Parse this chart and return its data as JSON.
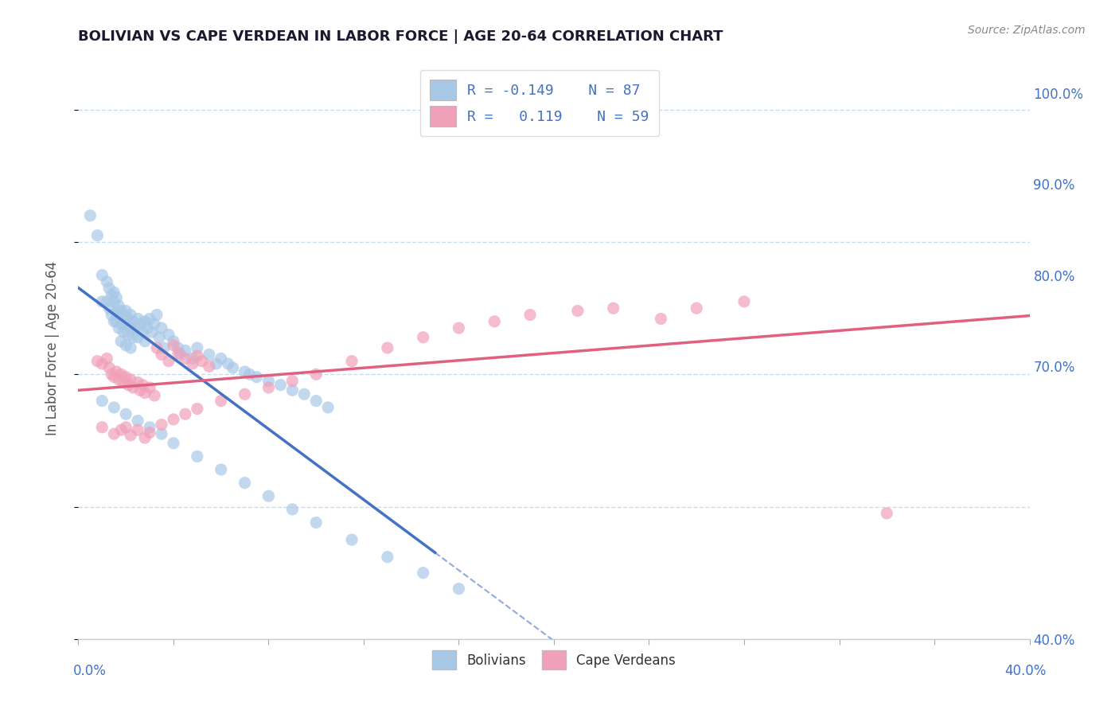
{
  "title": "BOLIVIAN VS CAPE VERDEAN IN LABOR FORCE | AGE 20-64 CORRELATION CHART",
  "source": "Source: ZipAtlas.com",
  "ylabel": "In Labor Force | Age 20-64",
  "yticks_right": [
    "100.0%",
    "90.0%",
    "80.0%",
    "70.0%",
    "40.0%"
  ],
  "ytick_values_right": [
    1.0,
    0.9,
    0.8,
    0.7,
    0.4
  ],
  "xmin": 0.0,
  "xmax": 0.4,
  "ymin": 0.6,
  "ymax": 1.04,
  "bolivian_R": -0.149,
  "bolivian_N": 87,
  "capeverdean_R": 0.119,
  "capeverdean_N": 59,
  "bolivian_color": "#a8c8e8",
  "capeverdean_color": "#f0a0b8",
  "bolivian_line_color": "#4472c4",
  "capeverdean_line_color": "#e06080",
  "background_color": "#ffffff",
  "grid_color": "#c8ddf0",
  "title_color": "#1a1a2e",
  "axis_label_color": "#4472c4",
  "legend_R_color": "#4472c4",
  "bolivian_scatter_x": [
    0.005,
    0.008,
    0.01,
    0.01,
    0.012,
    0.012,
    0.013,
    0.013,
    0.014,
    0.014,
    0.015,
    0.015,
    0.015,
    0.016,
    0.016,
    0.016,
    0.017,
    0.017,
    0.017,
    0.018,
    0.018,
    0.018,
    0.019,
    0.019,
    0.02,
    0.02,
    0.02,
    0.021,
    0.021,
    0.022,
    0.022,
    0.022,
    0.023,
    0.023,
    0.024,
    0.025,
    0.025,
    0.026,
    0.027,
    0.028,
    0.028,
    0.029,
    0.03,
    0.031,
    0.032,
    0.033,
    0.034,
    0.035,
    0.036,
    0.038,
    0.04,
    0.042,
    0.043,
    0.045,
    0.048,
    0.05,
    0.055,
    0.058,
    0.06,
    0.063,
    0.065,
    0.07,
    0.072,
    0.075,
    0.08,
    0.085,
    0.09,
    0.095,
    0.1,
    0.105,
    0.01,
    0.015,
    0.02,
    0.025,
    0.03,
    0.035,
    0.04,
    0.05,
    0.06,
    0.07,
    0.08,
    0.09,
    0.1,
    0.115,
    0.13,
    0.145,
    0.16
  ],
  "bolivian_scatter_y": [
    0.92,
    0.905,
    0.875,
    0.855,
    0.87,
    0.855,
    0.865,
    0.85,
    0.86,
    0.845,
    0.855,
    0.84,
    0.862,
    0.858,
    0.847,
    0.84,
    0.852,
    0.845,
    0.835,
    0.848,
    0.838,
    0.825,
    0.845,
    0.832,
    0.848,
    0.838,
    0.822,
    0.842,
    0.83,
    0.845,
    0.835,
    0.82,
    0.84,
    0.828,
    0.835,
    0.842,
    0.828,
    0.838,
    0.832,
    0.84,
    0.825,
    0.835,
    0.842,
    0.832,
    0.838,
    0.845,
    0.828,
    0.835,
    0.82,
    0.83,
    0.825,
    0.82,
    0.815,
    0.818,
    0.812,
    0.82,
    0.815,
    0.808,
    0.812,
    0.808,
    0.805,
    0.802,
    0.8,
    0.798,
    0.795,
    0.792,
    0.788,
    0.785,
    0.78,
    0.775,
    0.78,
    0.775,
    0.77,
    0.765,
    0.76,
    0.755,
    0.748,
    0.738,
    0.728,
    0.718,
    0.708,
    0.698,
    0.688,
    0.675,
    0.662,
    0.65,
    0.638
  ],
  "capeverdean_scatter_x": [
    0.008,
    0.01,
    0.012,
    0.013,
    0.014,
    0.015,
    0.016,
    0.017,
    0.018,
    0.019,
    0.02,
    0.021,
    0.022,
    0.023,
    0.025,
    0.026,
    0.027,
    0.028,
    0.03,
    0.032,
    0.033,
    0.035,
    0.038,
    0.04,
    0.042,
    0.045,
    0.048,
    0.05,
    0.052,
    0.055,
    0.01,
    0.015,
    0.018,
    0.02,
    0.022,
    0.025,
    0.028,
    0.03,
    0.035,
    0.04,
    0.045,
    0.05,
    0.06,
    0.07,
    0.08,
    0.09,
    0.1,
    0.115,
    0.13,
    0.145,
    0.16,
    0.175,
    0.19,
    0.21,
    0.225,
    0.245,
    0.26,
    0.28,
    0.34
  ],
  "capeverdean_scatter_y": [
    0.81,
    0.808,
    0.812,
    0.805,
    0.8,
    0.798,
    0.802,
    0.796,
    0.8,
    0.794,
    0.798,
    0.792,
    0.796,
    0.79,
    0.794,
    0.788,
    0.792,
    0.786,
    0.79,
    0.784,
    0.82,
    0.815,
    0.81,
    0.822,
    0.816,
    0.812,
    0.808,
    0.814,
    0.81,
    0.806,
    0.76,
    0.755,
    0.758,
    0.76,
    0.754,
    0.758,
    0.752,
    0.756,
    0.762,
    0.766,
    0.77,
    0.774,
    0.78,
    0.785,
    0.79,
    0.795,
    0.8,
    0.81,
    0.82,
    0.828,
    0.835,
    0.84,
    0.845,
    0.848,
    0.85,
    0.842,
    0.85,
    0.855,
    0.695
  ],
  "bolivian_line_solid_end": 0.15,
  "bolivian_line_x0": 0.0,
  "bolivian_line_x1": 0.4,
  "capeverdean_line_x0": 0.0,
  "capeverdean_line_x1": 0.4
}
